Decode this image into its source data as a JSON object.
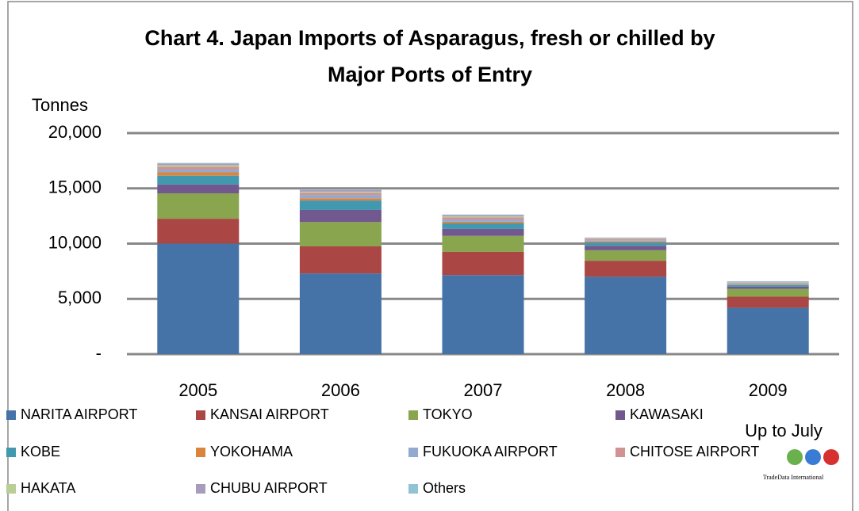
{
  "chart_data": {
    "type": "stacked_bar",
    "title": "Chart 4. Japan Imports of Asparagus, fresh or chilled by",
    "title_line2": "Major Ports of Entry",
    "y_label": "Tonnes",
    "annotation": "Up to July",
    "logo_text": "TradeData International",
    "categories": [
      "2005",
      "2006",
      "2007",
      "2008",
      "2009"
    ],
    "ylim": [
      0,
      20000
    ],
    "yticks": [
      {
        "value": 0,
        "label": "-"
      },
      {
        "value": 5000,
        "label": "5,000"
      },
      {
        "value": 10000,
        "label": "10,000"
      },
      {
        "value": 15000,
        "label": "15,000"
      },
      {
        "value": 20000,
        "label": "20,000"
      }
    ],
    "grid": true,
    "legend": "bottom",
    "series": [
      {
        "name": "NARITA AIRPORT",
        "color": "#4572a7",
        "values": [
          10000,
          7300,
          7150,
          7000,
          4200
        ]
      },
      {
        "name": "KANSAI AIRPORT",
        "color": "#aa4643",
        "values": [
          2250,
          2450,
          2100,
          1450,
          1000
        ]
      },
      {
        "name": "TOKYO",
        "color": "#89a54e",
        "values": [
          2300,
          2200,
          1450,
          950,
          700
        ]
      },
      {
        "name": "KAWASAKI",
        "color": "#71588f",
        "values": [
          800,
          1100,
          630,
          400,
          200
        ]
      },
      {
        "name": "KOBE",
        "color": "#4198af",
        "values": [
          800,
          850,
          500,
          300,
          150
        ]
      },
      {
        "name": "YOKOHAMA",
        "color": "#db843d",
        "values": [
          300,
          200,
          150,
          100,
          50
        ]
      },
      {
        "name": "FUKUOKA AIRPORT",
        "color": "#93a9cf",
        "values": [
          250,
          300,
          200,
          100,
          100
        ]
      },
      {
        "name": "CHITOSE AIRPORT",
        "color": "#d19392",
        "values": [
          250,
          200,
          200,
          100,
          50
        ]
      },
      {
        "name": "HAKATA",
        "color": "#b9cd96",
        "values": [
          150,
          100,
          100,
          50,
          50
        ]
      },
      {
        "name": "CHUBU AIRPORT",
        "color": "#a99bbd",
        "values": [
          150,
          150,
          100,
          50,
          50
        ]
      },
      {
        "name": "Others",
        "color": "#91c3d5",
        "values": [
          50,
          50,
          50,
          50,
          50
        ]
      }
    ]
  }
}
